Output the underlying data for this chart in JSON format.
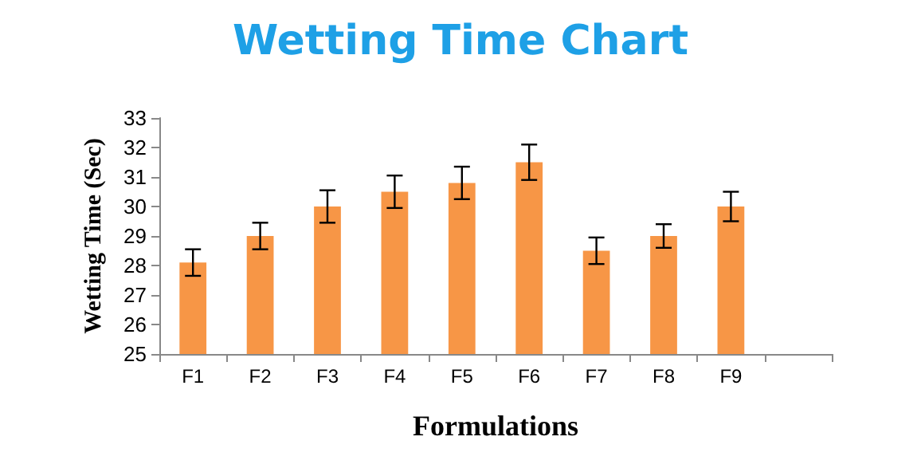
{
  "chart_data": {
    "type": "bar",
    "title": "Wetting Time Chart",
    "xlabel": "Formulations",
    "ylabel": "Wetting Time (Sec)",
    "categories": [
      "F1",
      "F2",
      "F3",
      "F4",
      "F5",
      "F6",
      "F7",
      "F8",
      "F9",
      null
    ],
    "values": [
      28.1,
      29.0,
      30.0,
      30.5,
      30.8,
      31.5,
      28.5,
      29.0,
      30.0,
      null
    ],
    "errors": [
      0.45,
      0.45,
      0.55,
      0.55,
      0.55,
      0.6,
      0.45,
      0.4,
      0.5,
      null
    ],
    "color": "#f79646",
    "ylim": [
      25,
      33
    ],
    "yticks": [
      25,
      26,
      27,
      28,
      29,
      30,
      31,
      32,
      33
    ],
    "grid": false
  }
}
